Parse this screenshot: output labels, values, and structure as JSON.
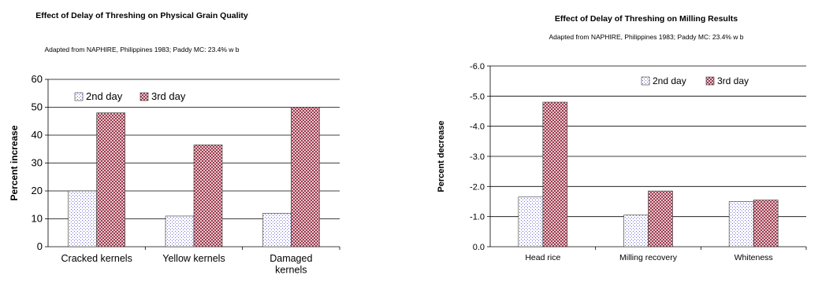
{
  "chart_data": [
    {
      "type": "bar",
      "title": "Effect of Delay of Threshing on Physical Grain Quality",
      "subtitle": "Adapted from NAPHIRE, Philippines 1983; Paddy MC: 23.4% w b",
      "xlabel": "",
      "ylabel": "Percent increase",
      "categories": [
        "Cracked kernels",
        "Yellow kernels",
        "Damaged kernels"
      ],
      "category_lines": [
        [
          "Cracked kernels"
        ],
        [
          "Yellow kernels"
        ],
        [
          "Damaged",
          "kernels"
        ]
      ],
      "series": [
        {
          "name": "2nd day",
          "values": [
            20,
            11,
            12
          ],
          "pattern": "dots",
          "color": "#6a6ad0"
        },
        {
          "name": "3rd day",
          "values": [
            48,
            36.5,
            50
          ],
          "pattern": "checker",
          "color": "#9c3b50"
        }
      ],
      "ylim": [
        0,
        60
      ],
      "yticks": [
        0,
        10,
        20,
        30,
        40,
        50,
        60
      ],
      "ytick_labels": [
        "0",
        "10",
        "20",
        "30",
        "40",
        "50",
        "60"
      ],
      "grid": true,
      "legend_position": "top-left"
    },
    {
      "type": "bar",
      "title": "Effect of Delay of Threshing on Milling Results",
      "subtitle": "Adapted from NAPHIRE, Philippines 1983; Paddy MC: 23.4% w b",
      "xlabel": "",
      "ylabel": "Percent decrease",
      "categories": [
        "Head rice",
        "Milling recovery",
        "Whiteness"
      ],
      "category_lines": [
        [
          "Head rice"
        ],
        [
          "Milling recovery"
        ],
        [
          "Whiteness"
        ]
      ],
      "series": [
        {
          "name": "2nd day",
          "values": [
            -1.65,
            -1.05,
            -1.5
          ],
          "pattern": "dots",
          "color": "#6a6ad0"
        },
        {
          "name": "3rd day",
          "values": [
            -4.8,
            -1.85,
            -1.55
          ],
          "pattern": "checker",
          "color": "#9c3b50"
        }
      ],
      "ylim": [
        0,
        -6
      ],
      "yticks": [
        0,
        -1,
        -2,
        -3,
        -4,
        -5,
        -6
      ],
      "ytick_labels": [
        "0.0",
        "-1.0",
        "-2.0",
        "-3.0",
        "-4.0",
        "-5.0",
        "-6.0"
      ],
      "grid": true,
      "legend_position": "top-right"
    }
  ]
}
